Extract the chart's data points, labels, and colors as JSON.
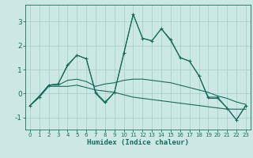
{
  "xlabel": "Humidex (Indice chaleur)",
  "background_color": "#cce8e4",
  "grid_color": "#aad0cc",
  "line_color": "#1a6b5e",
  "xlim": [
    -0.5,
    23.5
  ],
  "ylim": [
    -1.5,
    3.7
  ],
  "yticks": [
    -1,
    0,
    1,
    2,
    3
  ],
  "xticks": [
    0,
    1,
    2,
    3,
    4,
    5,
    6,
    7,
    8,
    9,
    10,
    11,
    12,
    13,
    14,
    15,
    16,
    17,
    18,
    19,
    20,
    21,
    22,
    23
  ],
  "lines": [
    {
      "x": [
        0,
        1,
        2,
        3,
        4,
        5,
        6,
        7,
        8,
        9,
        10,
        11,
        12,
        13,
        14,
        15,
        16,
        17,
        18,
        19,
        20,
        21,
        22,
        23
      ],
      "y": [
        -0.5,
        -0.15,
        0.35,
        0.4,
        1.2,
        1.6,
        1.45,
        0.05,
        -0.35,
        0.05,
        1.7,
        3.3,
        2.3,
        2.2,
        2.7,
        2.25,
        1.5,
        1.35,
        0.75,
        -0.15,
        -0.15,
        -0.6,
        -1.1,
        -0.5
      ],
      "marker": "+"
    },
    {
      "x": [
        0,
        1,
        2,
        3,
        4,
        5,
        6,
        7,
        8,
        9,
        10,
        11,
        12,
        13,
        14,
        15,
        16,
        17,
        18,
        19,
        20,
        21,
        22,
        23
      ],
      "y": [
        -0.5,
        -0.1,
        0.35,
        0.4,
        1.15,
        1.6,
        1.45,
        0.0,
        -0.4,
        0.05,
        1.65,
        3.3,
        2.3,
        2.2,
        2.7,
        2.2,
        1.5,
        1.35,
        0.75,
        -0.2,
        -0.2,
        -0.6,
        -1.1,
        -0.5
      ],
      "marker": null
    },
    {
      "x": [
        0,
        1,
        2,
        3,
        4,
        5,
        6,
        7,
        8,
        9,
        10,
        11,
        12,
        13,
        14,
        15,
        16,
        17,
        18,
        19,
        20,
        21,
        22,
        23
      ],
      "y": [
        -0.5,
        -0.1,
        0.35,
        0.35,
        0.55,
        0.6,
        0.5,
        0.3,
        0.4,
        0.45,
        0.55,
        0.6,
        0.6,
        0.55,
        0.5,
        0.45,
        0.35,
        0.25,
        0.15,
        0.05,
        -0.1,
        -0.2,
        -0.35,
        -0.45
      ],
      "marker": null
    },
    {
      "x": [
        0,
        1,
        2,
        3,
        4,
        5,
        6,
        7,
        8,
        9,
        10,
        11,
        12,
        13,
        14,
        15,
        16,
        17,
        18,
        19,
        20,
        21,
        22,
        23
      ],
      "y": [
        -0.5,
        -0.15,
        0.3,
        0.3,
        0.3,
        0.35,
        0.25,
        0.15,
        0.1,
        0.05,
        -0.05,
        -0.15,
        -0.2,
        -0.25,
        -0.3,
        -0.35,
        -0.4,
        -0.45,
        -0.5,
        -0.55,
        -0.6,
        -0.65,
        -0.65,
        -0.65
      ],
      "marker": null
    }
  ]
}
